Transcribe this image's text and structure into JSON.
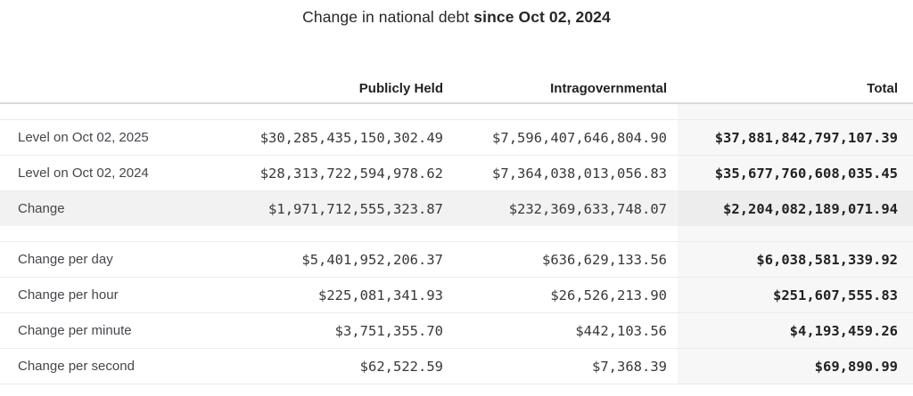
{
  "title": {
    "prefix": "Change in national debt ",
    "bold": "since Oct 02, 2024"
  },
  "colors": {
    "total_column_bg": "#f7f7f7",
    "highlight_row_bg": "#f2f2f2",
    "header_border": "#d9d9d9",
    "row_border": "#ececec",
    "text_dark": "#27272a"
  },
  "chart_data": {
    "type": "table",
    "title": "Change in national debt since Oct 02, 2024",
    "columns": [
      "",
      "Publicly Held",
      "Intragovernmental",
      "Total"
    ],
    "rows": [
      {
        "label": "Level on Oct 02, 2025",
        "publicly_held": "$30,285,435,150,302.49",
        "intragovernmental": "$7,596,407,646,804.90",
        "total": "$37,881,842,797,107.39"
      },
      {
        "label": "Level on Oct 02, 2024",
        "publicly_held": "$28,313,722,594,978.62",
        "intragovernmental": "$7,364,038,013,056.83",
        "total": "$35,677,760,608,035.45"
      },
      {
        "label": "Change",
        "publicly_held": "$1,971,712,555,323.87",
        "intragovernmental": "$232,369,633,748.07",
        "total": "$2,204,082,189,071.94"
      },
      {
        "label": "Change per day",
        "publicly_held": "$5,401,952,206.37",
        "intragovernmental": "$636,629,133.56",
        "total": "$6,038,581,339.92"
      },
      {
        "label": "Change per hour",
        "publicly_held": "$225,081,341.93",
        "intragovernmental": "$26,526,213.90",
        "total": "$251,607,555.83"
      },
      {
        "label": "Change per minute",
        "publicly_held": "$3,751,355.70",
        "intragovernmental": "$442,103.56",
        "total": "$4,193,459.26"
      },
      {
        "label": "Change per second",
        "publicly_held": "$62,522.59",
        "intragovernmental": "$7,368.39",
        "total": "$69,890.99"
      }
    ],
    "layout": {
      "grid": "horizontal-row-borders",
      "numeric_alignment": "right",
      "total_column_shaded": true,
      "change_row_shaded": true
    }
  }
}
